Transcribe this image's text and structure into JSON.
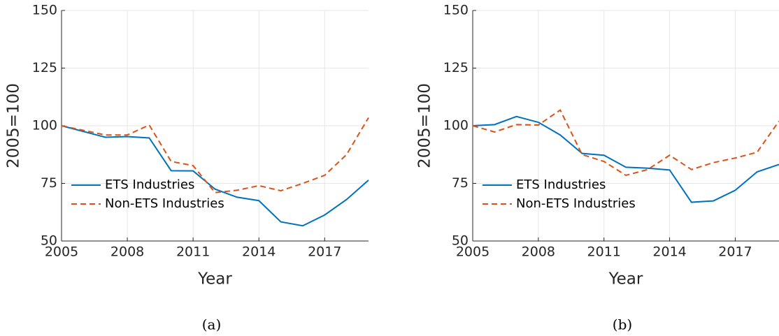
{
  "chart_data": [
    {
      "type": "line",
      "caption": "(a)",
      "xlabel": "Year",
      "ylabel": "2005=100",
      "x": [
        2005,
        2006,
        2007,
        2008,
        2009,
        2010,
        2011,
        2012,
        2013,
        2014,
        2015,
        2016,
        2017,
        2018,
        2019
      ],
      "xlim": [
        2005,
        2019
      ],
      "xticks": [
        2005,
        2008,
        2011,
        2014,
        2017
      ],
      "ylim": [
        50,
        150
      ],
      "yticks": [
        50,
        75,
        100,
        125,
        150
      ],
      "grid": true,
      "legend": "lower left",
      "series": [
        {
          "name": "ETS Industries",
          "color": "#0072bd",
          "line_style": "solid",
          "values": [
            100,
            97.5,
            95,
            95.3,
            94.7,
            80.5,
            80.4,
            72.5,
            69,
            67.5,
            58.3,
            56.6,
            61.3,
            68,
            76.4
          ]
        },
        {
          "name": "Non-ETS Industries",
          "color": "#d95319",
          "line_style": "dashed",
          "values": [
            100,
            98,
            96,
            96,
            100.3,
            84.5,
            82.7,
            71,
            72,
            74,
            71.8,
            75,
            78.5,
            87.5,
            103.5
          ]
        }
      ]
    },
    {
      "type": "line",
      "caption": "(b)",
      "xlabel": "Year",
      "ylabel": "2005=100",
      "x": [
        2005,
        2006,
        2007,
        2008,
        2009,
        2010,
        2011,
        2012,
        2013,
        2014,
        2015,
        2016,
        2017,
        2018,
        2019
      ],
      "xlim": [
        2005,
        2019
      ],
      "xticks": [
        2005,
        2008,
        2011,
        2014,
        2017
      ],
      "ylim": [
        50,
        150
      ],
      "yticks": [
        50,
        75,
        100,
        125,
        150
      ],
      "grid": true,
      "legend": "lower left",
      "series": [
        {
          "name": "ETS Industries",
          "color": "#0072bd",
          "line_style": "solid",
          "values": [
            100,
            100.5,
            104,
            101.5,
            96,
            88,
            87.2,
            82,
            81.6,
            80.8,
            66.8,
            67.4,
            72,
            80,
            83.2
          ]
        },
        {
          "name": "Non-ETS Industries",
          "color": "#d95319",
          "line_style": "dashed",
          "values": [
            100,
            97.3,
            100.5,
            100.3,
            106.8,
            87.5,
            84.5,
            78.5,
            81,
            87.2,
            81,
            84,
            86,
            88.5,
            102
          ]
        }
      ]
    }
  ]
}
